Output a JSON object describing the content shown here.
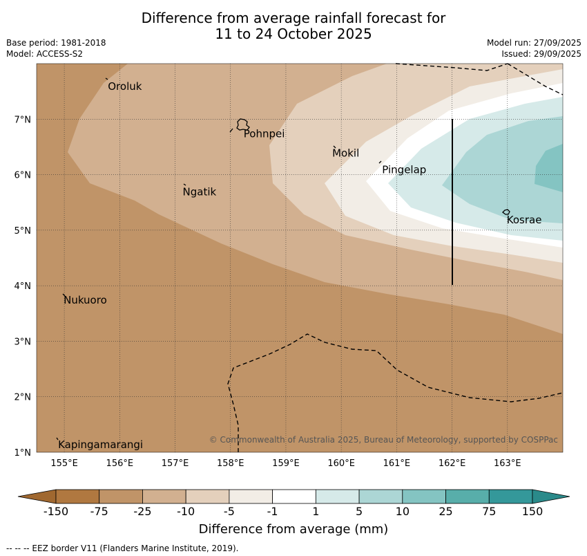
{
  "header": {
    "title_line1": "Difference from average rainfall forecast for",
    "title_line2": "11 to 24 October 2025",
    "base_period": "Base period: 1981-2018",
    "model": "Model: ACCESS-S2",
    "model_run": "Model run: 27/09/2025",
    "issued": "Issued: 29/09/2025"
  },
  "map": {
    "copyright": "© Commonwealth of Australia 2025, Bureau of Meteorology, supported by COSPPac",
    "lon_labels": [
      "155°E",
      "156°E",
      "157°E",
      "158°E",
      "159°E",
      "160°E",
      "161°E",
      "162°E",
      "163°E"
    ],
    "lat_labels": [
      "1°N",
      "2°N",
      "3°N",
      "4°N",
      "5°N",
      "6°N",
      "7°N"
    ],
    "places": [
      {
        "name": "Oroluk",
        "lon": 155.75,
        "lat": 7.7
      },
      {
        "name": "Pohnpei",
        "lon": 158.2,
        "lat": 6.85
      },
      {
        "name": "Mokil",
        "lon": 159.8,
        "lat": 6.5
      },
      {
        "name": "Pingelap",
        "lon": 160.7,
        "lat": 6.2
      },
      {
        "name": "Ngatik",
        "lon": 157.1,
        "lat": 5.8
      },
      {
        "name": "Kosrae",
        "lon": 162.95,
        "lat": 5.3
      },
      {
        "name": "Nukuoro",
        "lon": 154.95,
        "lat": 3.85
      },
      {
        "name": "Kapingamarangi",
        "lon": 154.85,
        "lat": 1.25
      }
    ]
  },
  "colorbar": {
    "labels": [
      "-150",
      "-75",
      "-25",
      "-10",
      "-5",
      "-1",
      "1",
      "5",
      "10",
      "25",
      "75",
      "150"
    ],
    "colors": [
      "#b07840",
      "#c09468",
      "#d2b090",
      "#e4d0bc",
      "#f2ede6",
      "#ffffff",
      "#d6eae9",
      "#acd6d5",
      "#84c4c2",
      "#58aeaa",
      "#34989a"
    ],
    "low_extend_color": "#a06830",
    "high_extend_color": "#2a8a8a",
    "title": "Difference from average (mm)"
  },
  "footer": {
    "legend_text": "--  --  -- EEZ border V11 (Flanders Marine Institute, 2019)."
  }
}
